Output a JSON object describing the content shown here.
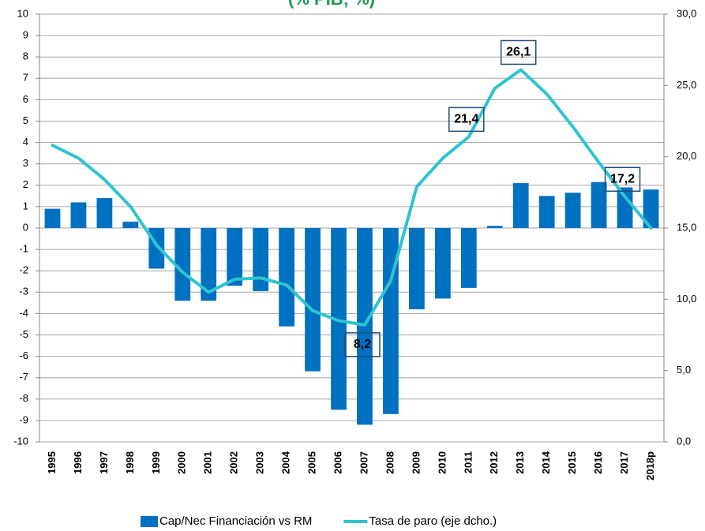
{
  "chart_data": {
    "type": "bar-line",
    "title": "(% PIB; %)",
    "categories": [
      "1995",
      "1996",
      "1997",
      "1998",
      "1999",
      "2000",
      "2001",
      "2002",
      "2003",
      "2004",
      "2005",
      "2006",
      "2007",
      "2008",
      "2009",
      "2010",
      "2011",
      "2012",
      "2013",
      "2014",
      "2015",
      "2016",
      "2017",
      "2018p"
    ],
    "series": [
      {
        "name": "Cap/Nec Financiación vs RM",
        "type": "bar",
        "color": "#0070c0",
        "values": [
          0.9,
          1.2,
          1.4,
          0.3,
          -1.9,
          -3.4,
          -3.4,
          -2.7,
          -2.95,
          -4.6,
          -6.7,
          -8.5,
          -9.2,
          -8.7,
          -3.8,
          -3.3,
          -2.8,
          0.1,
          2.1,
          1.5,
          1.65,
          2.15,
          1.9,
          1.8
        ]
      },
      {
        "name": "Tasa de paro (eje dcho.)",
        "type": "line",
        "axis": "y2",
        "color": "#2ec4d0",
        "values": [
          20.8,
          19.9,
          18.4,
          16.5,
          13.8,
          11.9,
          10.5,
          11.4,
          11.5,
          11.0,
          9.2,
          8.5,
          8.2,
          11.3,
          17.9,
          19.9,
          21.4,
          24.8,
          26.1,
          24.4,
          22.1,
          19.6,
          17.2,
          15.0
        ],
        "value_labels": [
          null,
          null,
          null,
          null,
          null,
          null,
          null,
          null,
          null,
          null,
          null,
          null,
          "8,2",
          null,
          null,
          null,
          "21,4",
          null,
          "26,1",
          null,
          null,
          null,
          "17,2",
          null
        ]
      }
    ],
    "ylim": [
      -10,
      10
    ],
    "yticks": [
      -10,
      -9,
      -8,
      -7,
      -6,
      -5,
      -4,
      -3,
      -2,
      -1,
      0,
      1,
      2,
      3,
      4,
      5,
      6,
      7,
      8,
      9,
      10
    ],
    "y2lim": [
      0,
      30
    ],
    "y2ticks": [
      {
        "value": 0,
        "label": "0,0"
      },
      {
        "value": 5,
        "label": "5,0"
      },
      {
        "value": 10,
        "label": "10,0"
      },
      {
        "value": 15,
        "label": "15,0"
      },
      {
        "value": 20,
        "label": "20,0"
      },
      {
        "value": 25,
        "label": "25,0"
      },
      {
        "value": 30,
        "label": "30,0"
      }
    ],
    "grid": true,
    "legend": "bottom"
  }
}
